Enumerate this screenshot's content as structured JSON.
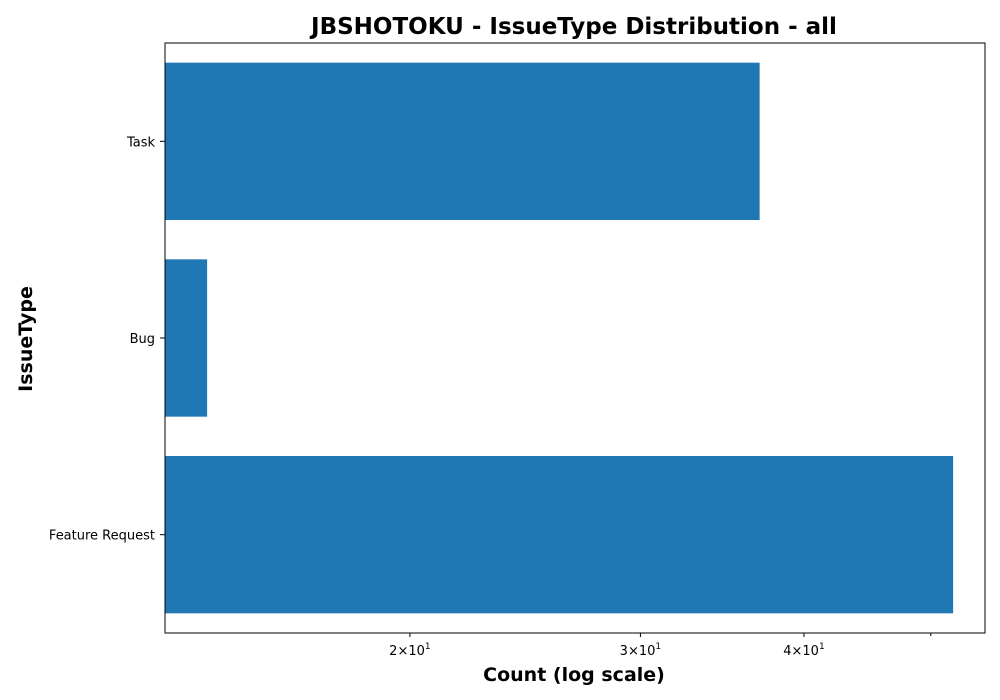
{
  "chart_data": {
    "type": "bar",
    "orientation": "horizontal",
    "title": "JBSHOTOKU - IssueType Distribution - all",
    "xlabel": "Count (log scale)",
    "ylabel": "IssueType",
    "x_scale": "log",
    "xlim": [
      13,
      55
    ],
    "categories": [
      "Task",
      "Bug",
      "Feature Request"
    ],
    "values": [
      37,
      14,
      52
    ],
    "bar_color": "#1f77b4",
    "x_ticks": [
      {
        "value": 20,
        "base": "2",
        "exp": "1"
      },
      {
        "value": 30,
        "base": "3",
        "exp": "1"
      },
      {
        "value": 40,
        "base": "4",
        "exp": "1"
      }
    ],
    "x_minor_ticks": [
      50
    ],
    "grid": false,
    "legend": "none"
  }
}
